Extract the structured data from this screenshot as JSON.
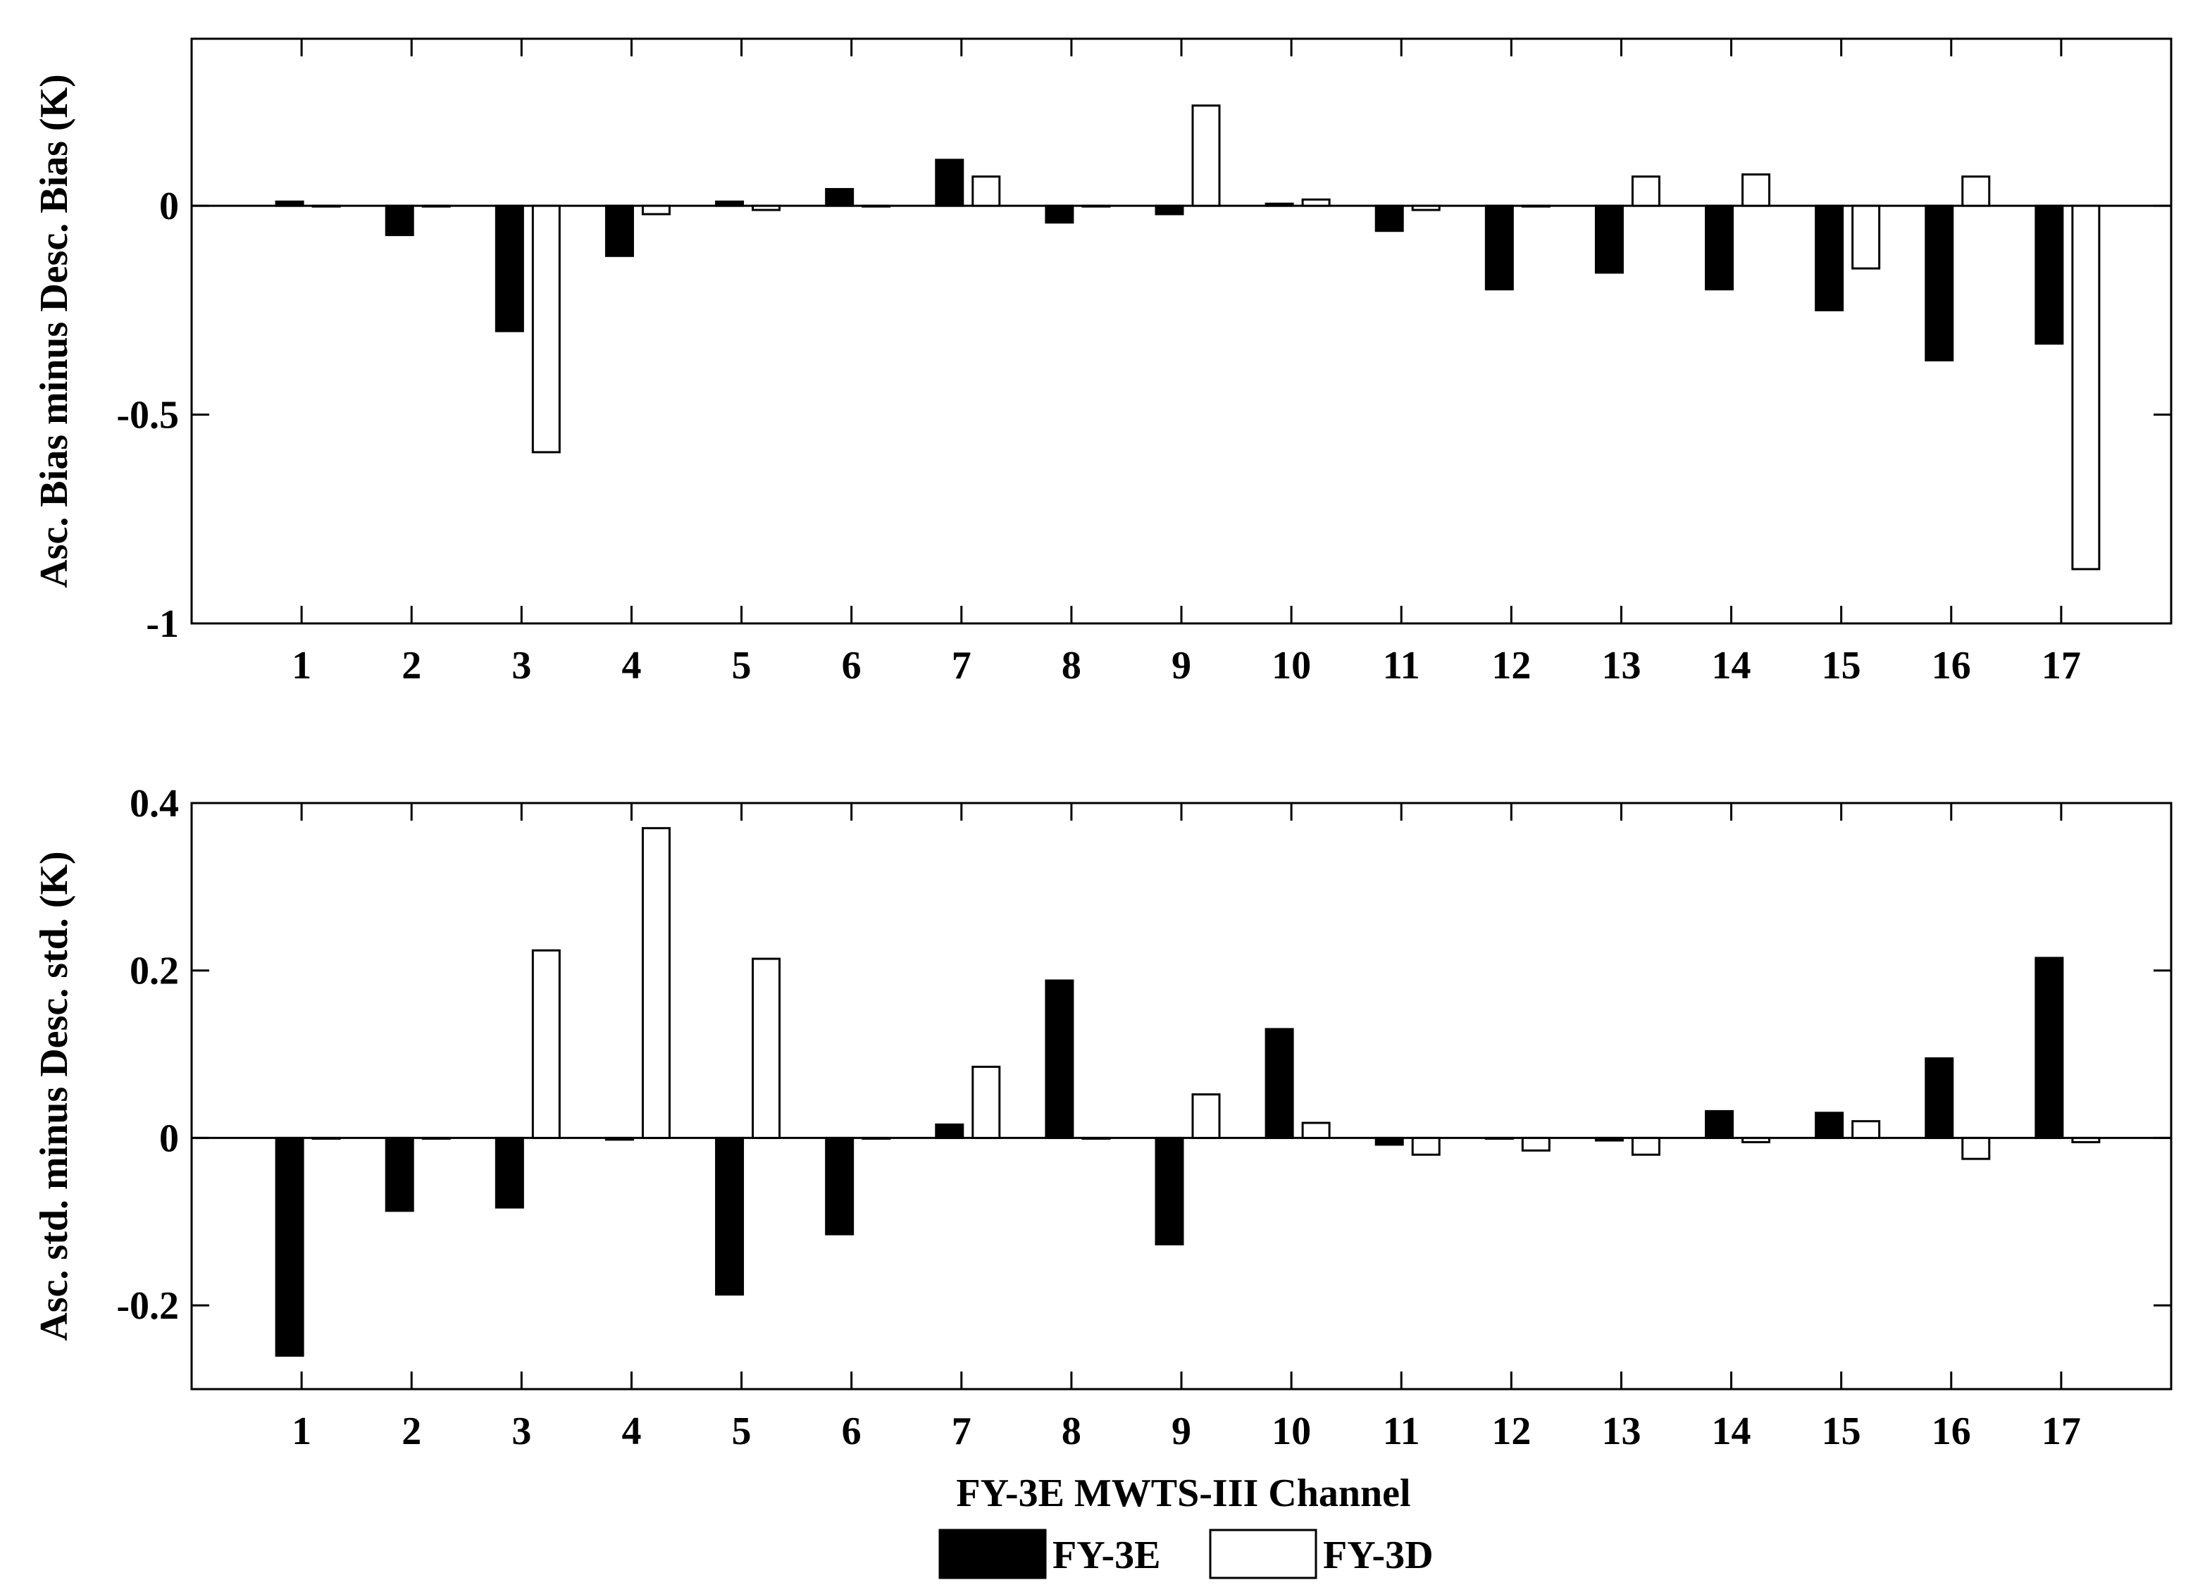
{
  "xlabel": "FY-3E MWTS-III Channel",
  "legend": [
    {
      "name": "FY-3E",
      "color": "#000000"
    },
    {
      "name": "FY-3D",
      "color": "#ffffff"
    }
  ],
  "chart_data": [
    {
      "type": "bar",
      "ylabel": "Asc. Bias minus Desc. Bias (K)",
      "categories": [
        "1",
        "2",
        "3",
        "4",
        "5",
        "6",
        "7",
        "8",
        "9",
        "10",
        "11",
        "12",
        "13",
        "14",
        "15",
        "16",
        "17"
      ],
      "ylim": [
        -1,
        0.4
      ],
      "yticks": [
        0,
        -0.5,
        -1
      ],
      "ytick_labels": [
        "0",
        "-0.5",
        "-1"
      ],
      "grid": false,
      "series": [
        {
          "name": "FY-3E",
          "color": "#000000",
          "values": [
            0.01,
            -0.07,
            -0.3,
            -0.12,
            0.01,
            0.04,
            0.11,
            -0.04,
            -0.02,
            0.005,
            -0.06,
            -0.2,
            -0.16,
            -0.2,
            -0.25,
            -0.37,
            -0.33
          ]
        },
        {
          "name": "FY-3D",
          "color": "#ffffff",
          "values": [
            0,
            0,
            -0.59,
            -0.02,
            -0.01,
            0,
            0.07,
            0,
            0.24,
            0.015,
            -0.01,
            0,
            0.07,
            0.075,
            -0.15,
            0.07,
            -0.87
          ]
        }
      ]
    },
    {
      "type": "bar",
      "ylabel": "Asc. std. minus Desc. std. (K)",
      "categories": [
        "1",
        "2",
        "3",
        "4",
        "5",
        "6",
        "7",
        "8",
        "9",
        "10",
        "11",
        "12",
        "13",
        "14",
        "15",
        "16",
        "17"
      ],
      "ylim": [
        -0.3,
        0.4
      ],
      "yticks": [
        0.4,
        0.2,
        0,
        -0.2
      ],
      "ytick_labels": [
        "0.4",
        "0.2",
        "0",
        "-0.2"
      ],
      "grid": false,
      "series": [
        {
          "name": "FY-3E",
          "color": "#000000",
          "values": [
            -0.26,
            -0.087,
            -0.083,
            -0.002,
            -0.187,
            -0.115,
            0.016,
            0.188,
            -0.127,
            0.13,
            -0.008,
            0,
            -0.003,
            0.032,
            0.03,
            0.095,
            0.215
          ]
        },
        {
          "name": "FY-3D",
          "color": "#ffffff",
          "values": [
            0,
            0,
            0.224,
            0.37,
            0.214,
            0,
            0.085,
            0,
            0.052,
            0.018,
            -0.02,
            -0.015,
            -0.02,
            -0.005,
            0.02,
            -0.025,
            -0.005
          ]
        }
      ]
    }
  ]
}
